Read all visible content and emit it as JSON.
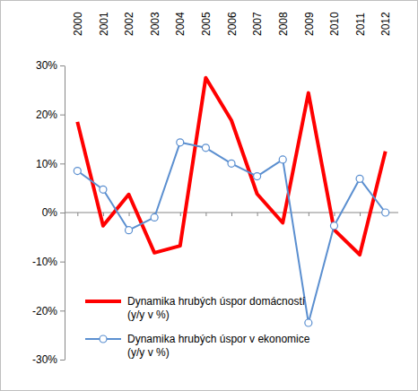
{
  "chart_data": {
    "type": "line",
    "categories": [
      "2000",
      "2001",
      "2002",
      "2003",
      "2004",
      "2005",
      "2006",
      "2007",
      "2008",
      "2009",
      "2010",
      "2011",
      "2012"
    ],
    "series": [
      {
        "name": "Dynamika hrubých úspor domácností (y/y v %)",
        "color": "#ff0000",
        "marker": "none",
        "line_style": "solid",
        "values": [
          18.5,
          -2.7,
          3.7,
          -8.2,
          -6.8,
          27.5,
          18.8,
          3.8,
          -2.1,
          24.4,
          -3.5,
          -8.6,
          12.5
        ]
      },
      {
        "name": "Dynamika hrubých úspor v ekonomice (y/y v %)",
        "color": "#5b8fd0",
        "marker": "circle",
        "line_style": "solid",
        "values": [
          8.5,
          4.7,
          -3.6,
          -1.0,
          14.3,
          13.2,
          10.0,
          7.4,
          10.8,
          -22.5,
          -2.7,
          6.9,
          0.0
        ]
      }
    ],
    "ylim": [
      -30,
      30
    ],
    "yticks": [
      {
        "value": -30,
        "label": "-30%"
      },
      {
        "value": -20,
        "label": "-20%"
      },
      {
        "value": -10,
        "label": "-10%"
      },
      {
        "value": 0,
        "label": "0%"
      },
      {
        "value": 10,
        "label": "10%"
      },
      {
        "value": 20,
        "label": "20%"
      },
      {
        "value": 30,
        "label": "30%"
      }
    ],
    "grid": false,
    "legend": "lower left"
  }
}
